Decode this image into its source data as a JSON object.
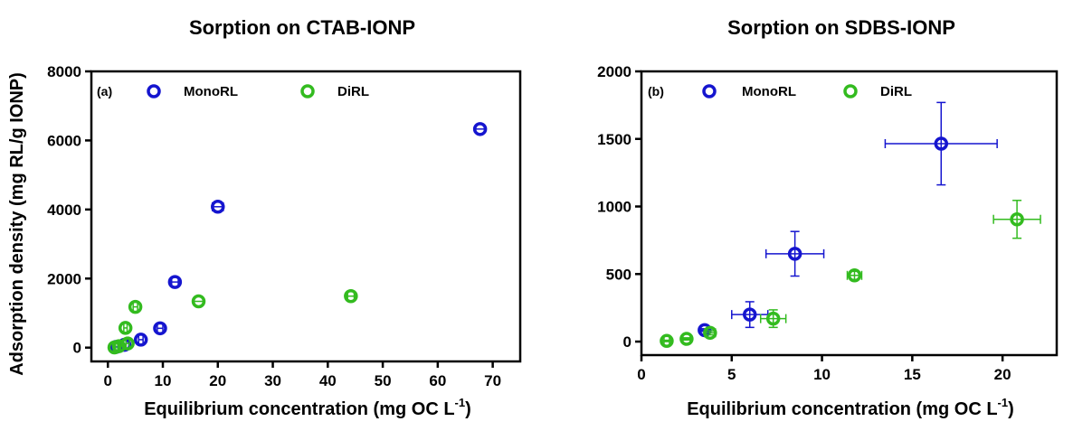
{
  "colors": {
    "MonoRL": "#1515cf",
    "DiRL": "#33bb1f"
  },
  "ylabel": "Adsorption density (mg RL/g IONP)",
  "chart_data": [
    {
      "type": "scatter",
      "title": "Sorption on CTAB-IONP",
      "panel": "(a)",
      "xlabel": "Equilibrium concentration (mg OC L",
      "xlabel_sup": "-1",
      "xlabel_end": ")",
      "xlim": [
        -3,
        75
      ],
      "ylim": [
        -400,
        8000
      ],
      "xticks": [
        0,
        10,
        20,
        30,
        40,
        50,
        60,
        70
      ],
      "yticks": [
        0,
        2000,
        4000,
        6000,
        8000
      ],
      "grid": false,
      "legend": "top-left",
      "series": [
        {
          "name": "MonoRL",
          "points": [
            {
              "x": 1.5,
              "y": 20,
              "xerr": 0.3,
              "yerr": 0
            },
            {
              "x": 3.0,
              "y": 80,
              "xerr": 0.3,
              "yerr": 0
            },
            {
              "x": 6.0,
              "y": 230,
              "xerr": 0.4,
              "yerr": 0
            },
            {
              "x": 9.5,
              "y": 560,
              "xerr": 0.5,
              "yerr": 0
            },
            {
              "x": 12.2,
              "y": 1900,
              "xerr": 0.6,
              "yerr": 0
            },
            {
              "x": 20.0,
              "y": 4080,
              "xerr": 1.0,
              "yerr": 0
            },
            {
              "x": 67.7,
              "y": 6330,
              "xerr": 0.8,
              "yerr": 0
            }
          ]
        },
        {
          "name": "DiRL",
          "points": [
            {
              "x": 1.2,
              "y": 5,
              "xerr": 0.2,
              "yerr": 0
            },
            {
              "x": 2.0,
              "y": 40,
              "xerr": 0.2,
              "yerr": 0
            },
            {
              "x": 3.6,
              "y": 120,
              "xerr": 0.3,
              "yerr": 0
            },
            {
              "x": 3.2,
              "y": 570,
              "xerr": 0.3,
              "yerr": 0
            },
            {
              "x": 5.0,
              "y": 1180,
              "xerr": 0.4,
              "yerr": 0
            },
            {
              "x": 16.5,
              "y": 1340,
              "xerr": 0.8,
              "yerr": 0
            },
            {
              "x": 44.2,
              "y": 1490,
              "xerr": 0.6,
              "yerr": 0
            }
          ]
        }
      ]
    },
    {
      "type": "scatter",
      "title": "Sorption on SDBS-IONP",
      "panel": "(b)",
      "xlabel": "Equilibrium concentration (mg OC L",
      "xlabel_sup": "-1",
      "xlabel_end": ")",
      "xlim": [
        0,
        23
      ],
      "ylim": [
        -100,
        2000
      ],
      "xticks": [
        0,
        5,
        10,
        15,
        20
      ],
      "yticks": [
        0,
        500,
        1000,
        1500,
        2000
      ],
      "grid": false,
      "legend": "top-left",
      "series": [
        {
          "name": "MonoRL",
          "points": [
            {
              "x": 3.5,
              "y": 85,
              "xerr": 0.2,
              "yerr": 10
            },
            {
              "x": 6.0,
              "y": 200,
              "xerr": 1.0,
              "yerr": 95
            },
            {
              "x": 8.5,
              "y": 650,
              "xerr": 1.6,
              "yerr": 165
            },
            {
              "x": 16.6,
              "y": 1465,
              "xerr": 3.1,
              "yerr": 305
            }
          ]
        },
        {
          "name": "DiRL",
          "points": [
            {
              "x": 1.4,
              "y": 5,
              "xerr": 0.15,
              "yerr": 5
            },
            {
              "x": 2.5,
              "y": 20,
              "xerr": 0.2,
              "yerr": 8
            },
            {
              "x": 3.8,
              "y": 65,
              "xerr": 0.3,
              "yerr": 15
            },
            {
              "x": 7.3,
              "y": 170,
              "xerr": 0.7,
              "yerr": 65
            },
            {
              "x": 11.8,
              "y": 490,
              "xerr": 0.4,
              "yerr": 30
            },
            {
              "x": 20.8,
              "y": 905,
              "xerr": 1.3,
              "yerr": 140
            }
          ]
        }
      ]
    }
  ]
}
